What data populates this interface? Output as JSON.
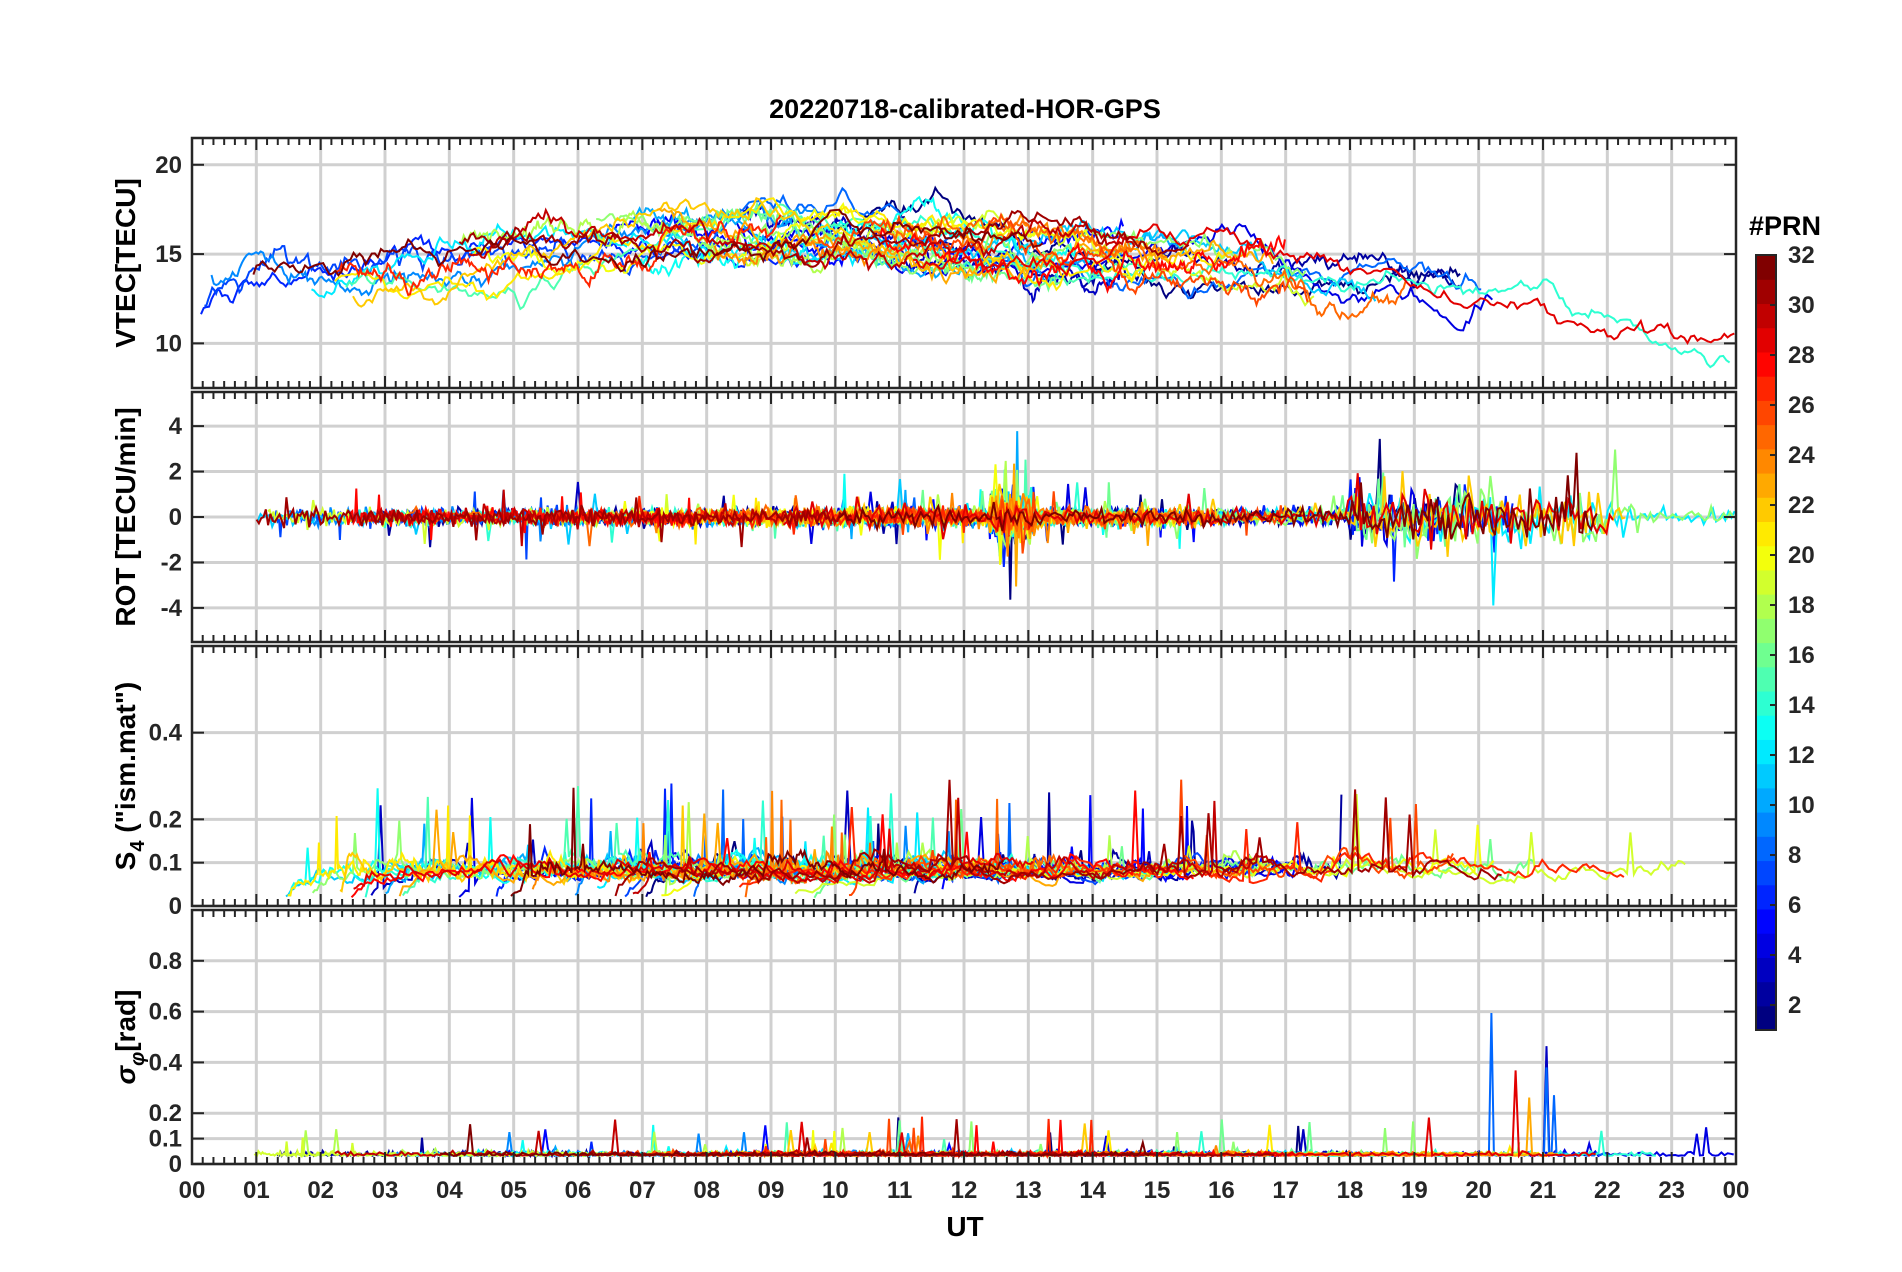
{
  "chart_data": {
    "type": "line",
    "title": "20220718-calibrated-HOR-GPS",
    "xlabel": "UT",
    "xlim": [
      0,
      24
    ],
    "xticklabels": [
      "00",
      "01",
      "02",
      "03",
      "04",
      "05",
      "06",
      "07",
      "08",
      "09",
      "10",
      "11",
      "12",
      "13",
      "14",
      "15",
      "16",
      "17",
      "18",
      "19",
      "20",
      "21",
      "22",
      "23",
      "00"
    ],
    "panels": [
      {
        "id": "vtec",
        "ylabel": "VTEC[TECU]",
        "ylim": [
          7.5,
          21.5
        ],
        "yticks": [
          10,
          15,
          20
        ],
        "yticklabels": [
          "10",
          "15",
          "20"
        ],
        "trend": [
          [
            0,
            12
          ],
          [
            0.5,
            13
          ],
          [
            1,
            14
          ],
          [
            2,
            13
          ],
          [
            3,
            13.5
          ],
          [
            4,
            14.5
          ],
          [
            5,
            15
          ],
          [
            6,
            15.5
          ],
          [
            7,
            16
          ],
          [
            8,
            16
          ],
          [
            9,
            16
          ],
          [
            10,
            16
          ],
          [
            11,
            15.8
          ],
          [
            12,
            15.5
          ],
          [
            13,
            15
          ],
          [
            14,
            15
          ],
          [
            15,
            15
          ],
          [
            16,
            14.5
          ],
          [
            17,
            14
          ],
          [
            18,
            13.5
          ],
          [
            19,
            13
          ],
          [
            20,
            12.5
          ],
          [
            21,
            12.5
          ],
          [
            22,
            11.5
          ],
          [
            23,
            10.5
          ],
          [
            24,
            10
          ]
        ],
        "noise": 0.8
      },
      {
        "id": "rot",
        "ylabel": "ROT [TECU/min]",
        "ylim": [
          -5.5,
          5.5
        ],
        "yticks": [
          -4,
          -2,
          0,
          2,
          4
        ],
        "yticklabels": [
          "-4",
          "-2",
          "0",
          "2",
          "4"
        ],
        "trend": [
          [
            0,
            0
          ],
          [
            24,
            0
          ]
        ],
        "noise": 0.35
      },
      {
        "id": "s4",
        "ylabel": "S4 (\"ism.mat\")",
        "ylabel_main": "S",
        "ylabel_sub": "4",
        "ylabel_rest": " (\"ism.mat\")",
        "ylim": [
          0,
          0.6
        ],
        "yticks": [
          0,
          0.1,
          0.2,
          0.4
        ],
        "yticklabels": [
          "0",
          "0.1",
          "0.2",
          "0.4"
        ],
        "trend": [
          [
            0,
            0.06
          ],
          [
            24,
            0.06
          ]
        ],
        "noise": 0.04
      },
      {
        "id": "sigma",
        "ylabel": "σφ[rad]",
        "ylabel_main": "σ",
        "ylabel_sub": "φ",
        "ylabel_rest": "[rad]",
        "ylim": [
          0,
          1.0
        ],
        "yticks": [
          0,
          0.1,
          0.2,
          0.4,
          0.6,
          0.8
        ],
        "yticklabels": [
          "0",
          "0.1",
          "0.2",
          "0.4",
          "0.6",
          "0.8"
        ],
        "trend": [
          [
            0,
            0.04
          ],
          [
            24,
            0.04
          ]
        ],
        "noise": 0.015
      }
    ],
    "series_count": 32,
    "colorbar": {
      "title": "#PRN",
      "colormap": "jet",
      "range": [
        1,
        32
      ],
      "ticks": [
        2,
        4,
        6,
        8,
        10,
        12,
        14,
        16,
        18,
        20,
        22,
        24,
        26,
        28,
        30,
        32
      ],
      "ticklabels": [
        "2",
        "4",
        "6",
        "8",
        "10",
        "12",
        "14",
        "16",
        "18",
        "20",
        "22",
        "24",
        "26",
        "28",
        "30",
        "32"
      ]
    }
  }
}
